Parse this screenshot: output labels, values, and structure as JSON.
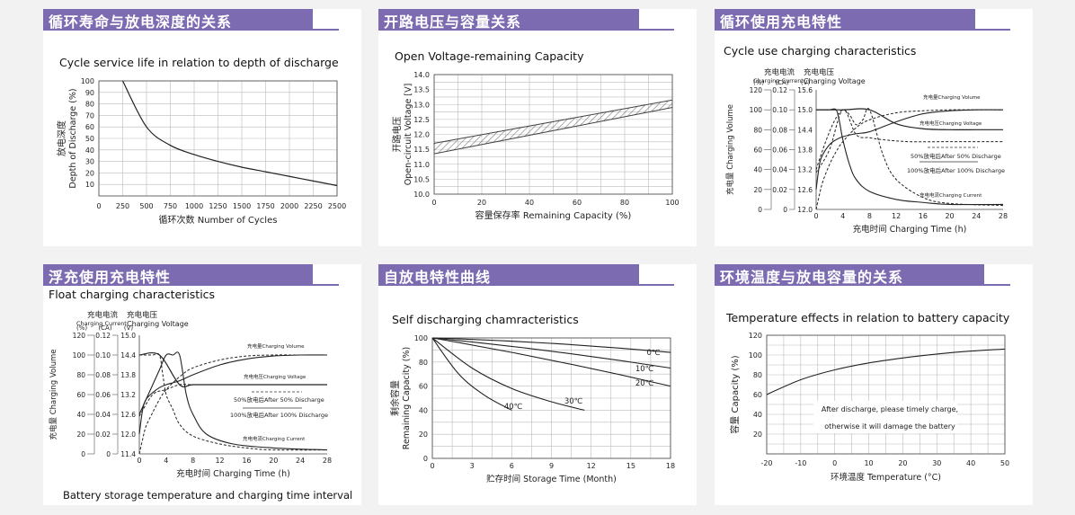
{
  "panels": {
    "p1": {
      "header": "循环寿命与放电深度的关系",
      "subtitle": "Cycle service life in relation to depth of discharge",
      "ylabel_cn": "放电深度",
      "ylabel_en": "Depth of Discharge (%)",
      "xlabel": "循环次数 Number of Cycles"
    },
    "p2": {
      "header": "开路电压与容量关系",
      "subtitle": "Open Voltage-remaining Capacity",
      "ylabel_cn": "开路电压",
      "ylabel_en": "Open-circuit Voltage [V]",
      "xlabel": "容量保存率 Remaining Capacity (%)"
    },
    "p3": {
      "header": "循环使用充电特性",
      "subtitle": "Cycle use charging characteristics",
      "col1_cn": "充电电流",
      "col1_en": "Charging Current",
      "col2_cn": "充电电压",
      "col2_en": "Charging Voltage",
      "unit_pct": "(%)",
      "unit_ca": "(CA)",
      "unit_v": "(V)",
      "ylabel": "充电量 Charging Volume",
      "xlabel": "充电时间 Charging Time (h)",
      "lbl_volume": "充电量Charging Volume",
      "lbl_voltage": "充电电压Charging Voltage",
      "lbl_50": "50%放电后After 50% Discharge",
      "lbl_100": "100%放电后After 100% Discharge",
      "lbl_current": "充电电流Charging Current"
    },
    "p4": {
      "header": "浮充使用充电特性",
      "subtitle": "Float charging characteristics",
      "col1_cn": "充电电流",
      "col1_en": "Charging Current",
      "col2_cn": "充电电压",
      "col2_en": "Charging Voltage",
      "unit_pct": "(%)",
      "unit_ca": "(CA)",
      "unit_v": "(V)",
      "ylabel": "充电量 Charging Volume",
      "xlabel": "充电时间 Charging Time (h)",
      "lbl_volume": "充电量Charging Volume",
      "lbl_voltage": "充电电压Charging Voltage",
      "lbl_50": "50%放电后After 50% Discharge",
      "lbl_100": "100%放电后After 100% Discharge",
      "lbl_current": "充电电流Charging Current",
      "bottom_note": "Battery storage temperature and charging time interval"
    },
    "p5": {
      "header": "自放电特性曲线",
      "subtitle": "Self discharging chamracteristics",
      "ylabel_cn": "剩余容量",
      "ylabel_en": "Remaining Capacity (%)",
      "xlabel": "贮存时间 Storage Time (Month)"
    },
    "p6": {
      "header": "环境温度与放电容量的关系",
      "subtitle": "Temperature effects in relation to battery capacity",
      "ylabel_cn": "容量",
      "ylabel_en": "Capacity (%)",
      "xlabel": "环境温度 Temperature (°C)",
      "note1": "After discharge, please timely charge,",
      "note2": "otherwise it will damage the battery"
    }
  },
  "chart_data": [
    {
      "type": "line",
      "id": "p1",
      "x": [
        250,
        500,
        750,
        1000,
        1250,
        1500,
        1750,
        2000,
        2250,
        2500
      ],
      "series": [
        {
          "values": [
            100,
            60,
            44,
            36,
            30,
            25,
            21,
            17,
            13,
            9
          ]
        }
      ],
      "xticks": [
        "0",
        "250",
        "500",
        "750",
        "1000",
        "1250",
        "1500",
        "1750",
        "2000",
        "2250",
        "2500"
      ],
      "yticks": [
        "10",
        "20",
        "30",
        "40",
        "50",
        "60",
        "70",
        "80",
        "90",
        "100"
      ],
      "xlim": [
        0,
        2500
      ],
      "ylim": [
        0,
        100
      ],
      "grid": true
    },
    {
      "type": "area",
      "id": "p2",
      "x": [
        0,
        100
      ],
      "series": [
        {
          "values": [
            11.7,
            13.15
          ]
        },
        {
          "values": [
            11.35,
            12.9
          ]
        }
      ],
      "xticks": [
        "0",
        "20",
        "40",
        "60",
        "80",
        "100"
      ],
      "yticks": [
        "10.0",
        "10.5",
        "11.0",
        "11.5",
        "12.0",
        "12.5",
        "13.0",
        "13.5",
        "14.0"
      ],
      "xlim": [
        0,
        100
      ],
      "ylim": [
        10,
        14
      ],
      "grid": true
    },
    {
      "type": "line",
      "id": "p3",
      "xticks": [
        "0",
        "4",
        "8",
        "12",
        "16",
        "20",
        "24",
        "28"
      ],
      "yticks_pct": [
        "0",
        "20",
        "40",
        "60",
        "80",
        "100",
        "120"
      ],
      "yticks_ca": [
        "0",
        "0.02",
        "0.04",
        "0.06",
        "0.08",
        "0.10",
        "0.12"
      ],
      "yticks_v": [
        "12.0",
        "12.6",
        "13.2",
        "13.8",
        "14.4",
        "15.0",
        "15.6"
      ],
      "xlim": [
        0,
        28
      ],
      "ylim_pct": [
        0,
        120
      ],
      "series": [
        {
          "x": [
            0,
            0.5,
            1,
            2,
            3,
            4,
            6,
            8,
            12,
            16,
            20,
            24,
            28
          ],
          "values": [
            20,
            45,
            55,
            65,
            70,
            73,
            76,
            78,
            88,
            96,
            99,
            100,
            100
          ]
        },
        {
          "x": [
            0,
            0.5,
            1,
            2,
            3,
            4,
            6,
            8,
            12,
            16,
            20,
            24,
            28
          ],
          "values": [
            0,
            15,
            28,
            45,
            58,
            68,
            82,
            90,
            97,
            99,
            100,
            100,
            100
          ]
        },
        {
          "x": [
            0,
            4,
            8,
            12,
            16,
            20,
            24,
            28
          ],
          "values": [
            100,
            100,
            100,
            86,
            81,
            80,
            80,
            80
          ]
        },
        {
          "x": [
            0,
            2,
            4,
            6,
            8,
            10,
            14,
            20,
            28
          ],
          "values": [
            37,
            60,
            100,
            75,
            72,
            70,
            68,
            68,
            68
          ]
        },
        {
          "x": [
            0,
            1,
            2,
            3,
            4,
            5,
            6,
            7,
            8,
            10,
            12,
            16,
            20,
            28
          ],
          "values": [
            40,
            60,
            78,
            92,
            100,
            95,
            85,
            90,
            100,
            55,
            30,
            12,
            6,
            4
          ]
        },
        {
          "x": [
            0,
            1,
            2,
            3,
            3.5,
            4,
            5,
            6,
            8,
            12,
            16,
            20,
            28
          ],
          "values": [
            100,
            100,
            100,
            100,
            88,
            70,
            45,
            30,
            18,
            10,
            7,
            5,
            5
          ]
        }
      ]
    },
    {
      "type": "line",
      "id": "p4",
      "xticks": [
        "0",
        "4",
        "8",
        "12",
        "16",
        "20",
        "24",
        "28"
      ],
      "yticks_pct": [
        "0",
        "20",
        "40",
        "60",
        "80",
        "100",
        "120"
      ],
      "yticks_ca": [
        "0",
        "0.02",
        "0.04",
        "0.06",
        "0.08",
        "0.10",
        "0.12"
      ],
      "yticks_v": [
        "11.4",
        "12.0",
        "12.6",
        "13.2",
        "13.8",
        "14.4",
        "15.0"
      ],
      "xlim": [
        0,
        28
      ],
      "ylim_pct": [
        0,
        120
      ],
      "series": [
        {
          "x": [
            0,
            0.5,
            1,
            2,
            3,
            4,
            6,
            8,
            12,
            16,
            20,
            24,
            28
          ],
          "values": [
            20,
            45,
            55,
            62,
            67,
            70,
            74,
            80,
            90,
            96,
            99,
            100,
            100
          ]
        },
        {
          "x": [
            0,
            0.5,
            1,
            2,
            3,
            4,
            6,
            8,
            12,
            16,
            20,
            24,
            28
          ],
          "values": [
            0,
            15,
            28,
            42,
            55,
            65,
            78,
            87,
            95,
            99,
            100,
            100,
            100
          ]
        },
        {
          "x": [
            0,
            3,
            6,
            8,
            12,
            16,
            20,
            28
          ],
          "values": [
            100,
            100,
            70,
            70,
            70,
            70,
            70,
            70
          ]
        },
        {
          "x": [
            0,
            2,
            4,
            6,
            8,
            12,
            20,
            28
          ],
          "values": [
            38,
            60,
            65,
            70,
            70,
            70,
            70,
            70
          ]
        },
        {
          "x": [
            0,
            1,
            2,
            3,
            3.5,
            4,
            5,
            6,
            8,
            12,
            16,
            20,
            28
          ],
          "values": [
            100,
            100,
            100,
            100,
            80,
            60,
            45,
            30,
            18,
            10,
            6,
            4,
            4
          ]
        },
        {
          "x": [
            0,
            1,
            2,
            3,
            4,
            5,
            6,
            7,
            8,
            10,
            14,
            20,
            28
          ],
          "values": [
            40,
            55,
            70,
            85,
            100,
            100,
            100,
            60,
            40,
            20,
            10,
            6,
            4
          ]
        }
      ]
    },
    {
      "type": "line",
      "id": "p5",
      "x": [
        0,
        3,
        6,
        9,
        12,
        15,
        18
      ],
      "series": [
        {
          "name": "0℃",
          "x": [
            0,
            18
          ],
          "values": [
            100,
            88
          ]
        },
        {
          "name": "10℃",
          "x": [
            0,
            18
          ],
          "values": [
            100,
            75
          ]
        },
        {
          "name": "20℃",
          "x": [
            0,
            18
          ],
          "values": [
            100,
            60
          ]
        },
        {
          "name": "30℃",
          "x": [
            0,
            3,
            6,
            9,
            11.5
          ],
          "values": [
            100,
            75,
            58,
            47,
            40
          ]
        },
        {
          "name": "40℃",
          "x": [
            0,
            2,
            4,
            6
          ],
          "values": [
            100,
            70,
            52,
            40
          ]
        }
      ],
      "xticks": [
        "0",
        "3",
        "6",
        "9",
        "12",
        "15",
        "18"
      ],
      "yticks": [
        "0",
        "20",
        "40",
        "60",
        "80",
        "100"
      ],
      "xlim": [
        0,
        18
      ],
      "ylim": [
        0,
        100
      ],
      "grid": true
    },
    {
      "type": "line",
      "id": "p6",
      "x": [
        -20,
        -10,
        0,
        10,
        20,
        30,
        40,
        50
      ],
      "series": [
        {
          "values": [
            60,
            75,
            85,
            92,
            97,
            101,
            104,
            106
          ]
        }
      ],
      "xticks": [
        "-20",
        "-10",
        "0",
        "10",
        "20",
        "30",
        "40",
        "50"
      ],
      "yticks": [
        "20",
        "40",
        "60",
        "80",
        "100",
        "120"
      ],
      "xlim": [
        -20,
        50
      ],
      "ylim": [
        0,
        120
      ],
      "grid": true
    }
  ]
}
